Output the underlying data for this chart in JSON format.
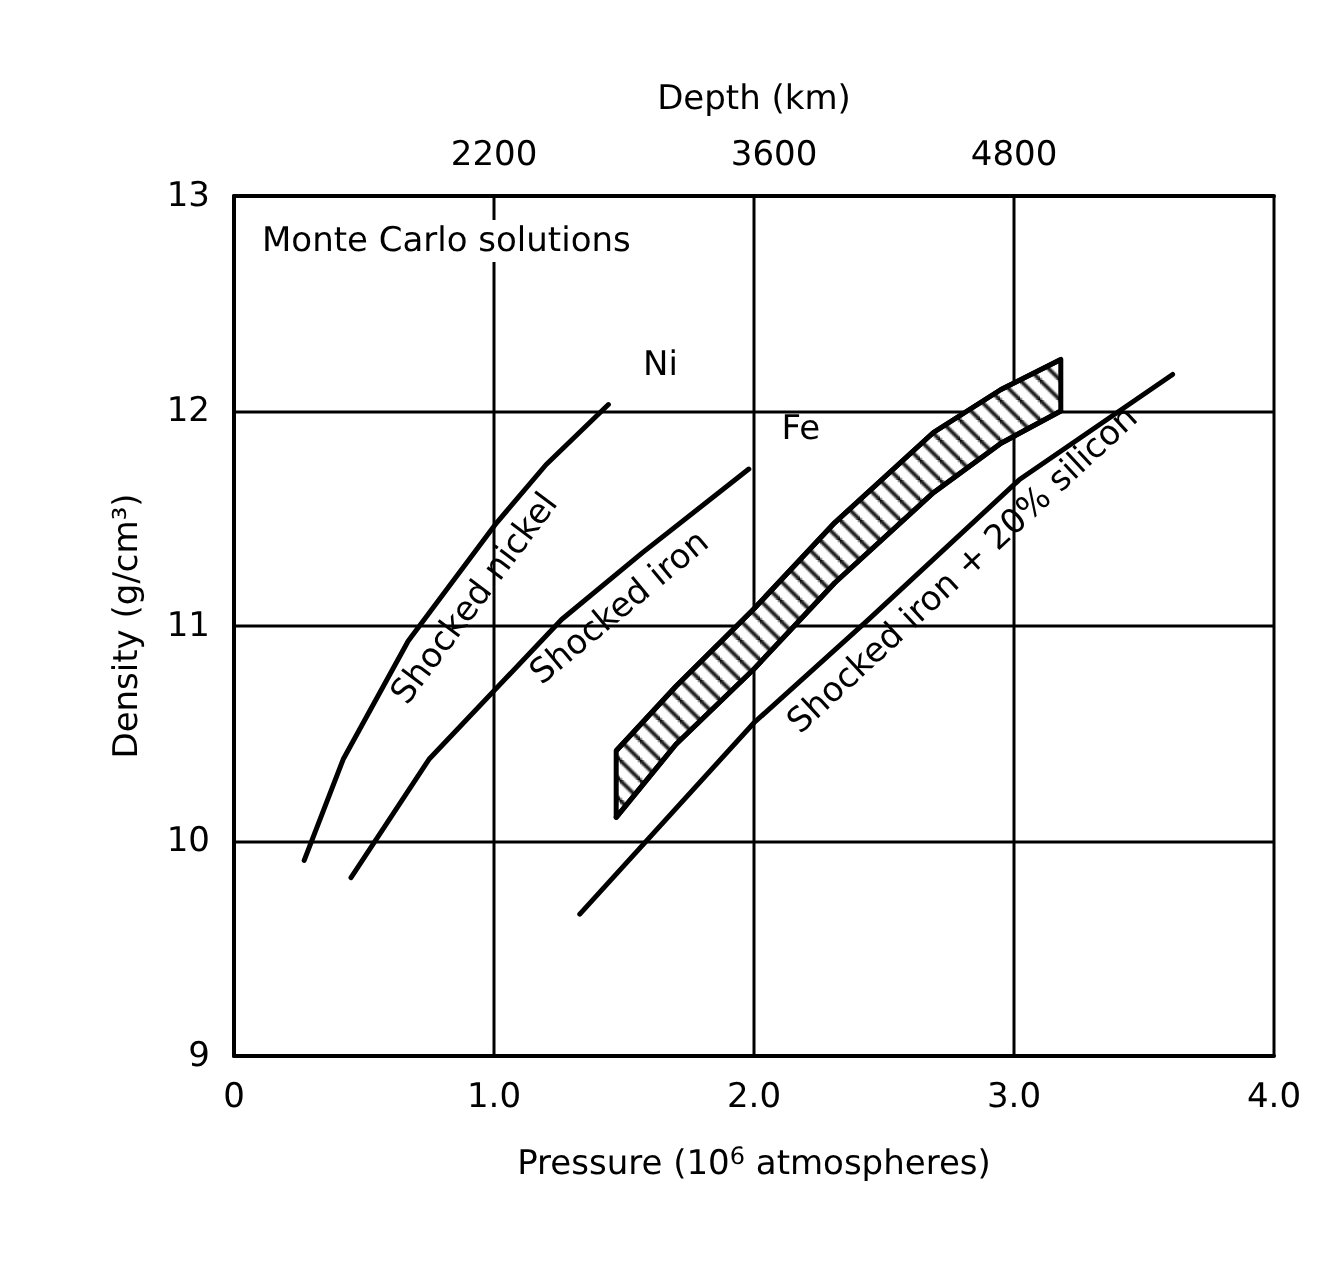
{
  "chart_data": {
    "type": "line",
    "xlabel": "Pressure (10$^{6}$ atmospheres)",
    "ylabel": "Density (g/cm³)",
    "x2label": "Depth (km)",
    "annotations": [
      "Monte Carlo solutions",
      {
        "text": "Ni",
        "x": 1.44,
        "y": 12.03
      },
      {
        "text": "Fe",
        "x": 1.98,
        "y": 11.73
      }
    ],
    "series": [
      {
        "name": "Shocked nickel",
        "color": "#000000",
        "x": [
          0.27,
          0.42,
          0.67,
          1.01,
          1.2,
          1.44
        ],
        "values": [
          9.91,
          10.38,
          10.93,
          11.48,
          11.75,
          12.03
        ]
      },
      {
        "name": "Shocked iron",
        "color": "#000000",
        "x": [
          0.45,
          0.75,
          1.26,
          1.57,
          1.98
        ],
        "values": [
          9.83,
          10.38,
          11.03,
          11.34,
          11.73
        ]
      },
      {
        "name": "Shocked iron + 20% silicon",
        "color": "#000000",
        "x": [
          1.33,
          2.0,
          2.44,
          3.02,
          3.61
        ],
        "values": [
          9.66,
          10.55,
          11.03,
          11.68,
          12.17
        ]
      },
      {
        "type": "area",
        "color": "#000000",
        "x": [
          1.47,
          1.7,
          2.0,
          2.31,
          2.69,
          2.95,
          3.18
        ],
        "values": [
          10.42,
          10.72,
          11.08,
          11.48,
          11.9,
          12.1,
          12.24
        ]
      },
      {
        "type": "line",
        "color": "#000000",
        "x": [
          1.47,
          1.7,
          2.0,
          2.31,
          2.69,
          2.95,
          3.18
        ],
        "values": [
          10.11,
          10.45,
          10.8,
          11.2,
          11.62,
          11.85,
          12.0
        ]
      }
    ],
    "xlim": [
      0,
      4
    ],
    "xticks": [
      0,
      {
        "value": 1,
        "label": "1.0"
      },
      {
        "value": 2,
        "label": "2.0"
      },
      {
        "value": 3,
        "label": "3.0"
      },
      {
        "value": 4,
        "label": "4.0"
      }
    ],
    "x2lim": [
      900,
      6100
    ],
    "x2ticks": [
      2200,
      3600,
      4800
    ],
    "ylim": [
      9,
      13
    ],
    "yticks": [
      9,
      10,
      11,
      12,
      13
    ],
    "grid": true,
    "legend": false,
    "marker": "none",
    "line_style": "solid"
  }
}
